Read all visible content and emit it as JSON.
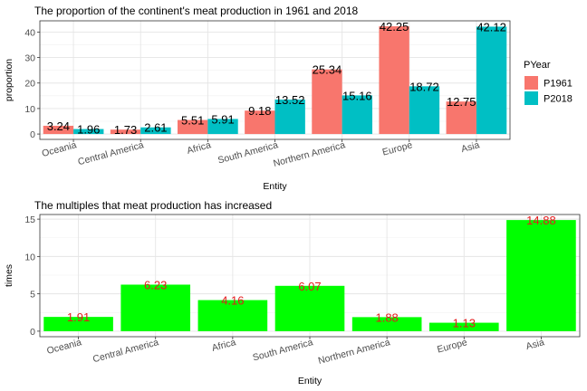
{
  "chart_data": [
    {
      "type": "bar",
      "title": "The proportion of the continent's meat production in 1961 and 2018",
      "xlabel": "Entity",
      "ylabel": "proportion",
      "categories": [
        "Oceania",
        "Central America",
        "Africa",
        "South America",
        "Northern America",
        "Europe",
        "Asia"
      ],
      "series": [
        {
          "name": "P1961",
          "color": "#F8766D",
          "values": [
            3.24,
            1.73,
            5.51,
            9.18,
            25.34,
            42.25,
            12.75
          ]
        },
        {
          "name": "P2018",
          "color": "#00BFC4",
          "values": [
            1.96,
            2.61,
            5.91,
            13.52,
            15.16,
            18.72,
            42.12
          ]
        }
      ],
      "data_labels": [
        [
          "3.24",
          "1.73",
          "5.51",
          "9.18",
          "25.34",
          "42.25",
          "12.75"
        ],
        [
          "1.96",
          "2.61",
          "5.91",
          "13.52",
          "15.16",
          "18.72",
          "42.12"
        ]
      ],
      "yticks": [
        0,
        10,
        20,
        30,
        40
      ],
      "ylim": [
        -2.1,
        44.4
      ],
      "legend": {
        "title": "PYear",
        "position": "right"
      },
      "grid": true
    },
    {
      "type": "bar",
      "title": "The multiples that meat production has increased",
      "xlabel": "Entity",
      "ylabel": "times",
      "categories": [
        "Oceania",
        "Central America",
        "Africa",
        "South America",
        "Northern America",
        "Europe",
        "Asia"
      ],
      "series": [
        {
          "name": "",
          "color": "#00FF00",
          "values": [
            1.91,
            6.23,
            4.16,
            6.07,
            1.88,
            1.13,
            14.88
          ]
        }
      ],
      "data_labels": [
        "1.91",
        "6.23",
        "4.16",
        "6.07",
        "1.88",
        "1.13",
        "14.88"
      ],
      "label_color": "#E41A1C",
      "yticks": [
        0,
        5,
        10,
        15
      ],
      "ylim": [
        -0.74,
        15.62
      ],
      "grid": true
    }
  ]
}
